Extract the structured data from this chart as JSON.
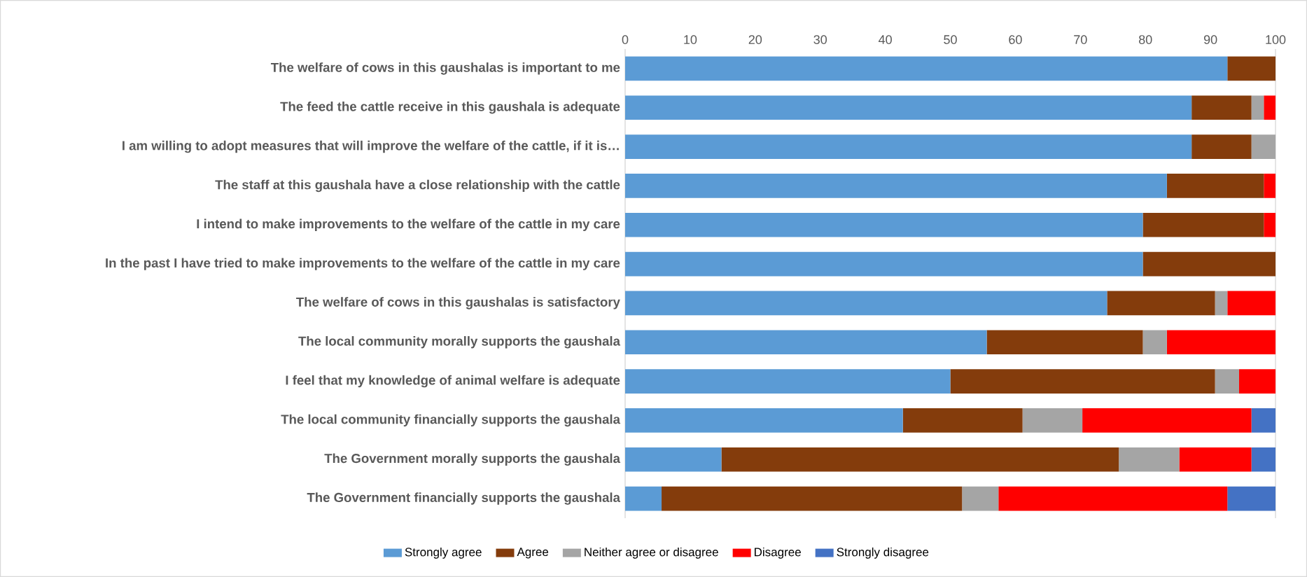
{
  "chart_data": {
    "type": "bar",
    "orientation": "horizontal",
    "stacked": true,
    "legend": "bottom",
    "xlim": [
      0,
      100
    ],
    "xticks": [
      0,
      10,
      20,
      30,
      40,
      50,
      60,
      70,
      80,
      90,
      100
    ],
    "categories": [
      "The welfare of cows in this gaushalas is important to me",
      "The feed the cattle receive in this gaushala is adequate",
      "I am willing to adopt measures that will improve the welfare of the cattle, if it is…",
      "The staff at this gaushala have a close relationship with the cattle",
      "I intend to make improvements to the welfare of the cattle in my care",
      "In the past I have tried to make improvements to the welfare of the cattle in my care",
      "The welfare of cows in this gaushalas is satisfactory",
      "The local community morally supports the gaushala",
      "I feel that my knowledge of animal welfare is adequate",
      "The local community financially supports the gaushala",
      "The Government morally supports the gaushala",
      "The Government financially supports the gaushala"
    ],
    "series": [
      {
        "name": "Strongly agree",
        "color": "#5b9bd5",
        "values": [
          92.6,
          87.1,
          87.1,
          83.3,
          79.6,
          79.6,
          74.1,
          55.6,
          50.0,
          42.7,
          14.8,
          5.6
        ]
      },
      {
        "name": "Agree",
        "color": "#843c0c",
        "values": [
          7.4,
          9.2,
          9.2,
          14.9,
          18.6,
          20.4,
          16.6,
          24.0,
          40.7,
          18.4,
          61.1,
          46.2
        ]
      },
      {
        "name": "Neither agree or disagree",
        "color": "#a5a5a5",
        "values": [
          0,
          1.9,
          3.7,
          0,
          0,
          0,
          1.9,
          3.7,
          3.7,
          9.2,
          9.3,
          5.6
        ]
      },
      {
        "name": "Disagree",
        "color": "#ff0000",
        "values": [
          0,
          1.8,
          0,
          1.8,
          1.8,
          0,
          7.4,
          16.7,
          5.6,
          26.0,
          11.1,
          35.2
        ]
      },
      {
        "name": "Strongly disagree",
        "color": "#4472c4",
        "values": [
          0,
          0,
          0,
          0,
          0,
          0,
          0,
          0,
          0,
          3.7,
          3.7,
          7.4
        ]
      }
    ]
  }
}
